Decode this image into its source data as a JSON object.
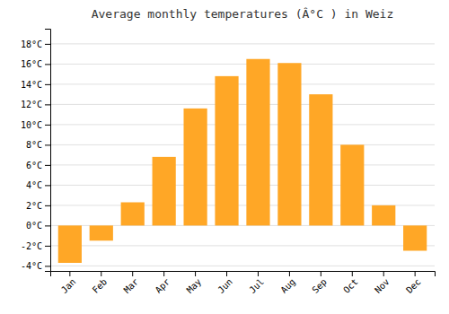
{
  "chart_data": {
    "type": "bar",
    "title": "Average monthly temperatures (Â°C ) in Weiz",
    "categories": [
      "Jan",
      "Feb",
      "Mar",
      "Apr",
      "May",
      "Jun",
      "Jul",
      "Aug",
      "Sep",
      "Oct",
      "Nov",
      "Dec"
    ],
    "values": [
      -3.7,
      -1.5,
      2.3,
      6.8,
      11.6,
      14.8,
      16.5,
      16.1,
      13.0,
      8.0,
      2.0,
      -2.5
    ],
    "color": "#FFA726",
    "ylim": [
      -4.5,
      19.5
    ],
    "yticks": [
      {
        "value": -4,
        "label": "-4°C"
      },
      {
        "value": -2,
        "label": "-2°C"
      },
      {
        "value": 0,
        "label": "0°C"
      },
      {
        "value": 2,
        "label": "2°C"
      },
      {
        "value": 4,
        "label": "4°C"
      },
      {
        "value": 6,
        "label": "6°C"
      },
      {
        "value": 8,
        "label": "8°C"
      },
      {
        "value": 10,
        "label": "10°C"
      },
      {
        "value": 12,
        "label": "12°C"
      },
      {
        "value": 14,
        "label": "14°C"
      },
      {
        "value": 16,
        "label": "16°C"
      },
      {
        "value": 18,
        "label": "18°C"
      }
    ],
    "grid": true
  }
}
